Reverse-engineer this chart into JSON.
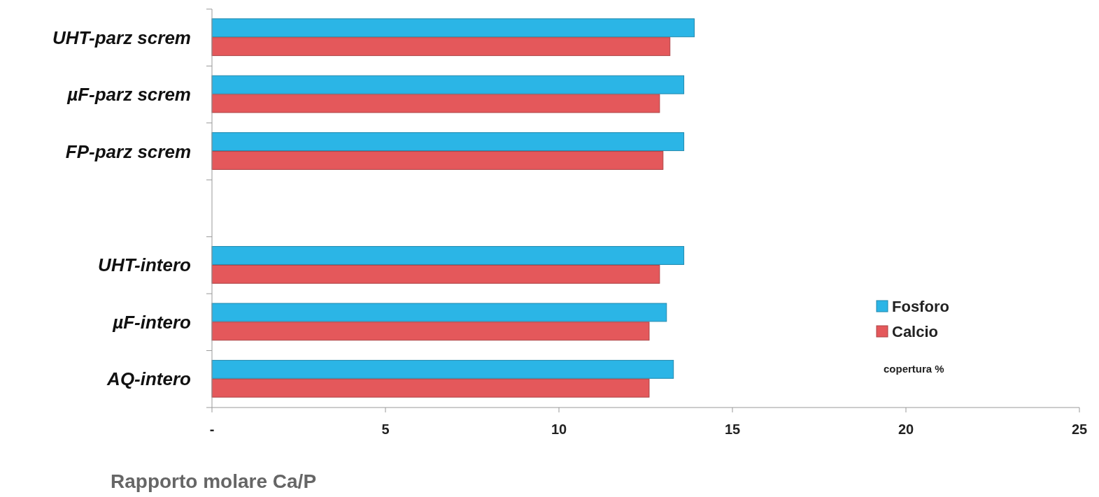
{
  "chart_data": {
    "type": "bar",
    "orientation": "horizontal",
    "xlabel": "Rapporto molare Ca/P",
    "categories": [
      "UHT-parz screm",
      "µF-parz screm",
      "FP-parz screm",
      null,
      "UHT-intero",
      "µF-intero",
      "AQ-intero"
    ],
    "series": [
      {
        "name": "Fosforo",
        "color": "#2bb5e6",
        "values": [
          13.9,
          13.6,
          13.6,
          null,
          13.6,
          13.1,
          13.3
        ]
      },
      {
        "name": "Calcio",
        "color": "#e4585b",
        "values": [
          13.2,
          12.9,
          13.0,
          null,
          12.9,
          12.6,
          12.6
        ]
      }
    ],
    "xlim": [
      0,
      25
    ],
    "xticks": [
      {
        "value": 0,
        "label": "-"
      },
      5,
      10,
      15,
      20,
      25
    ],
    "legend": "right",
    "grid": false,
    "annotations": [
      "copertura %"
    ]
  }
}
